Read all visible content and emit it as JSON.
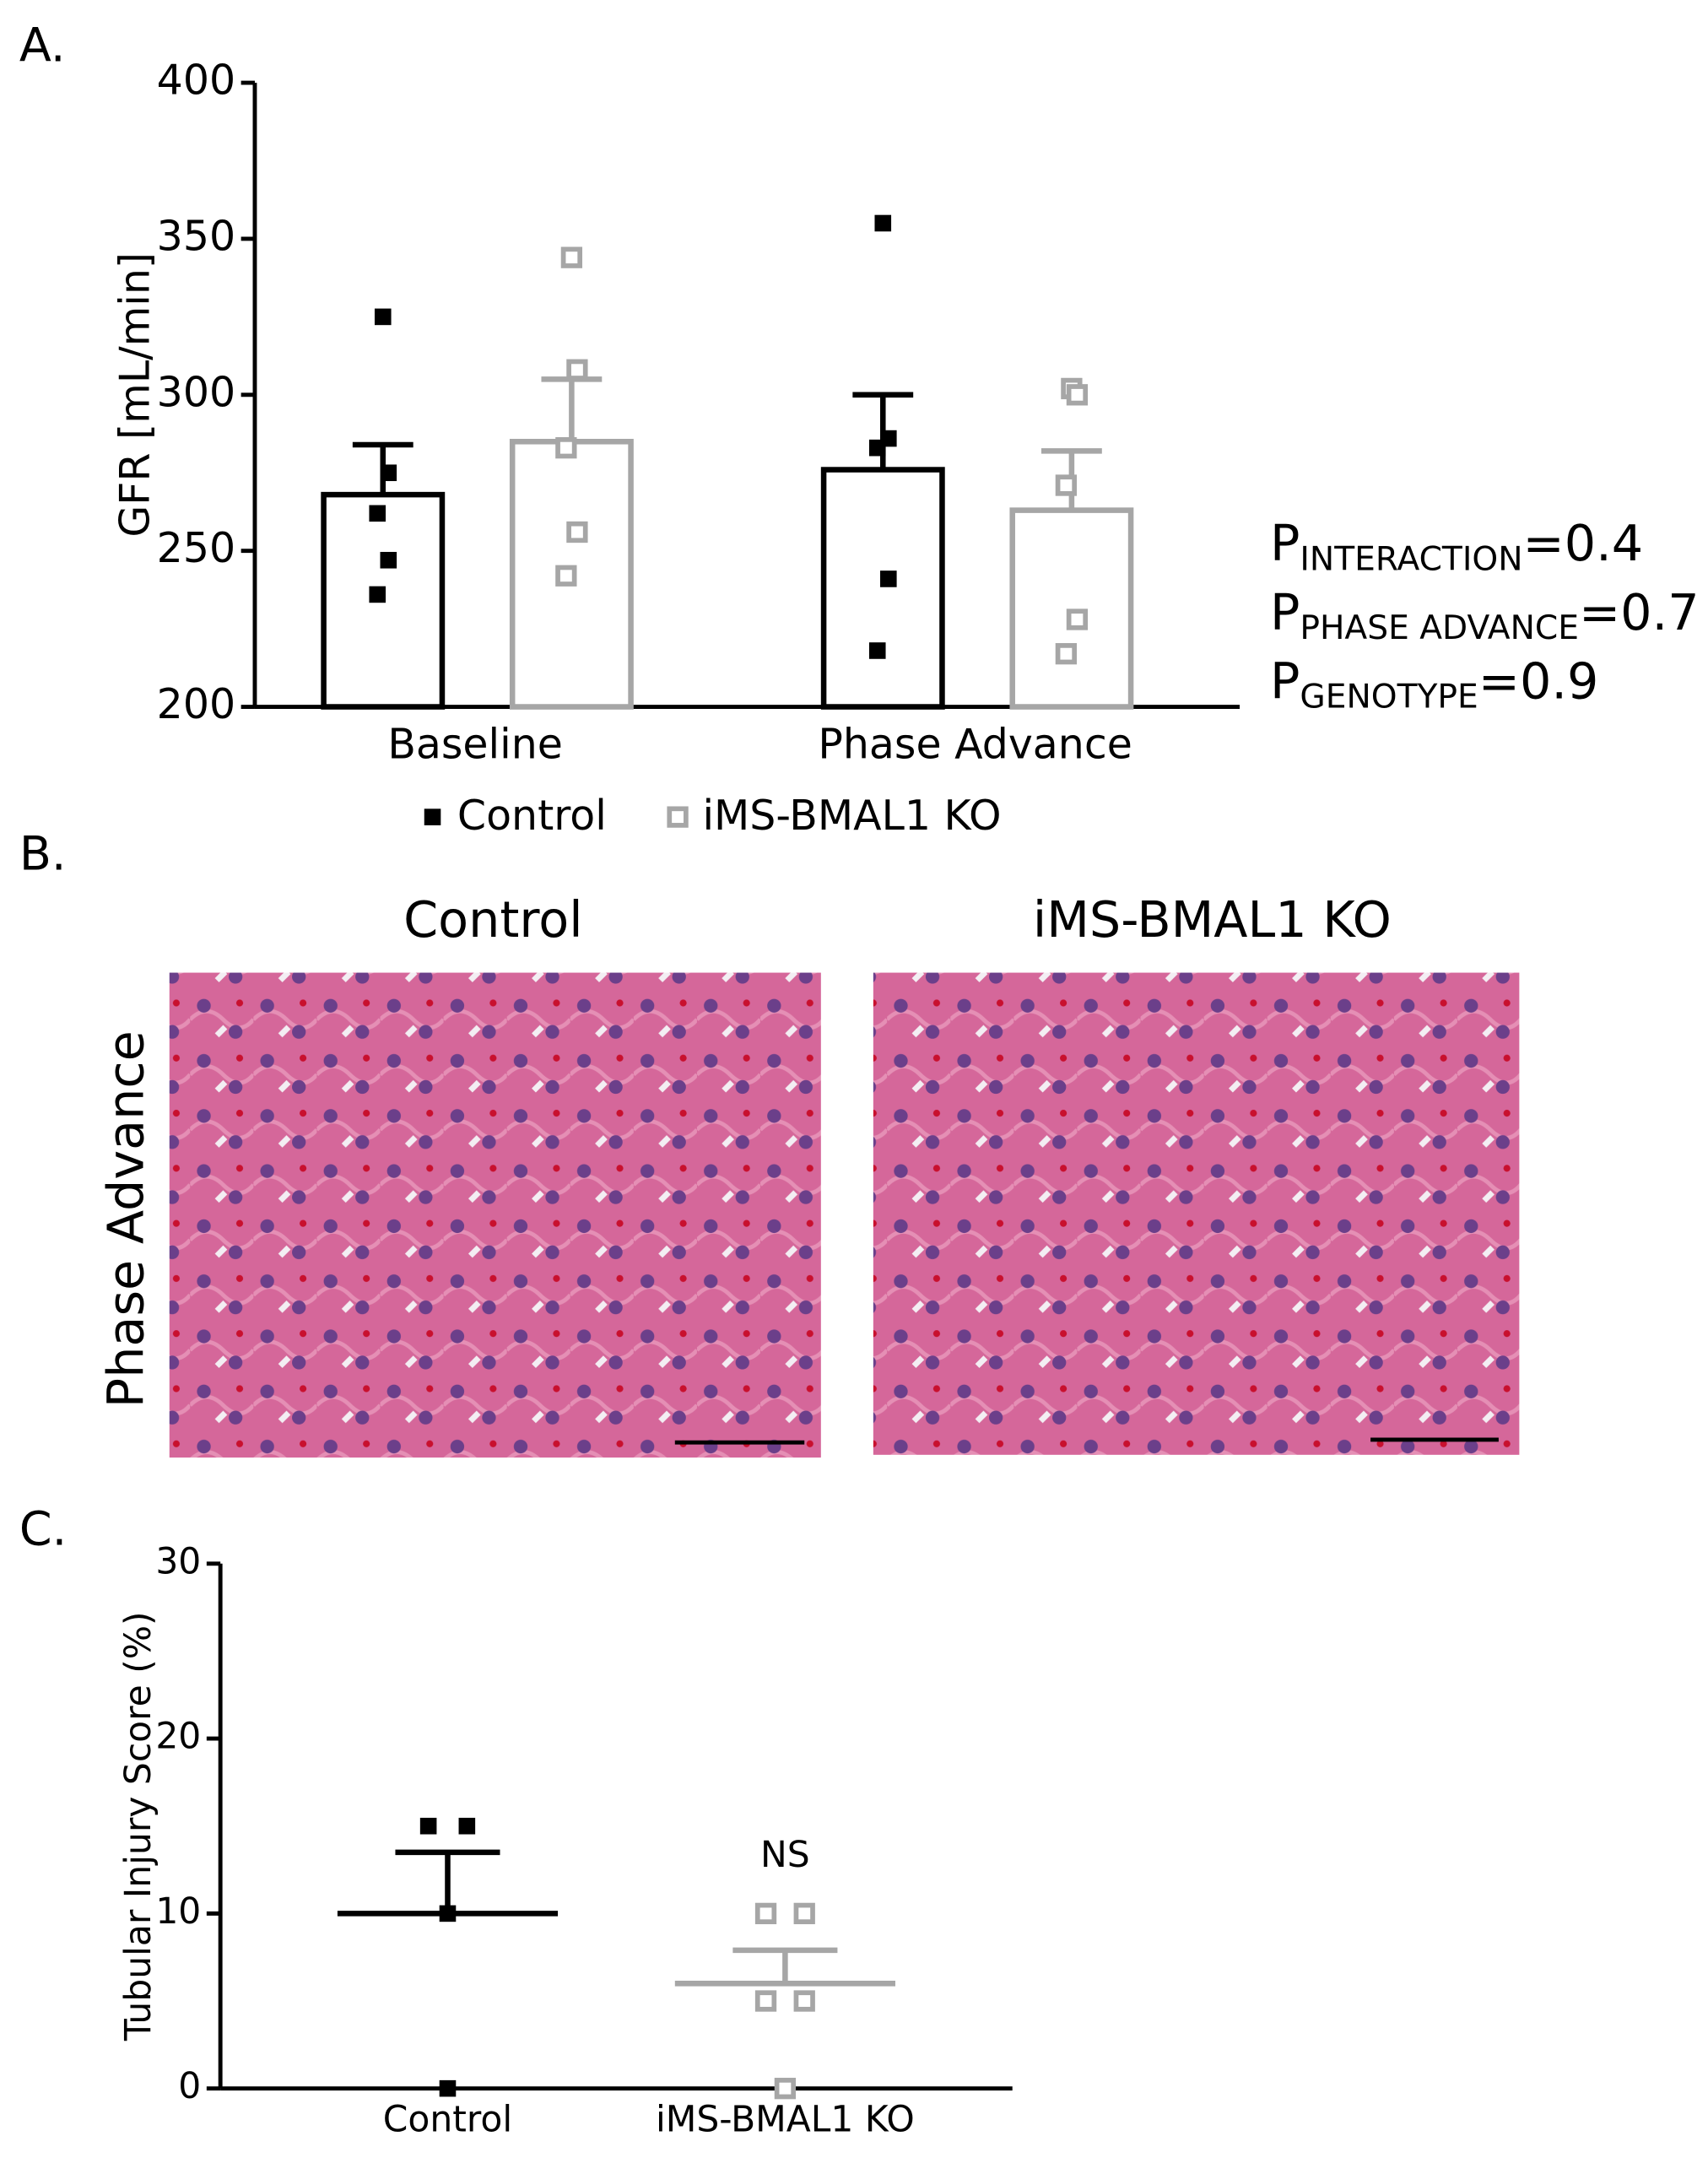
{
  "chart_data": [
    {
      "type": "bar",
      "panel_label": "A.",
      "ylabel": "GFR [mL/min]",
      "categories": [
        "Baseline",
        "Phase Advance"
      ],
      "series": [
        {
          "name": "Control",
          "color": "#000000",
          "values": [
            268,
            276
          ],
          "errors": [
            16,
            24
          ],
          "points": [
            [
              325,
              275,
              262,
              247,
              236
            ],
            [
              355,
              286,
              283,
              241,
              218
            ]
          ]
        },
        {
          "name": "iMS-BMAL1 KO",
          "color": "#a6a6a6",
          "values": [
            285,
            263
          ],
          "errors": [
            20,
            19
          ],
          "points": [
            [
              344,
              308,
              283,
              256,
              242
            ],
            [
              302,
              300,
              271,
              228,
              217
            ]
          ]
        }
      ],
      "ylim": [
        200,
        400
      ],
      "yticks": [
        200,
        250,
        300,
        350,
        400
      ],
      "annotations": [
        {
          "main": "P",
          "sub": "INTERACTION",
          "rest": "=0.4"
        },
        {
          "main": "P",
          "sub": "PHASE ADVANCE",
          "rest": "=0.7"
        },
        {
          "main": "P",
          "sub": "GENOTYPE",
          "rest": "=0.9"
        }
      ]
    },
    {
      "type": "scatter",
      "panel_label": "C.",
      "ylabel": "Tubular Injury Score (%)",
      "categories": [
        "Control",
        "iMS-BMAL1 KO"
      ],
      "colors": [
        "#000000",
        "#a6a6a6"
      ],
      "points": [
        [
          15,
          15,
          10,
          0
        ],
        [
          10,
          10,
          5,
          5,
          0
        ]
      ],
      "means": [
        10,
        6
      ],
      "errors": [
        3.5,
        1.9
      ],
      "ylim": [
        0,
        30
      ],
      "yticks": [
        0,
        10,
        20,
        30
      ],
      "annotation": "NS"
    }
  ],
  "panel_b": {
    "panel_label": "B.",
    "row_label": "Phase Advance",
    "columns": [
      "Control",
      "iMS-BMAL1 KO"
    ]
  }
}
